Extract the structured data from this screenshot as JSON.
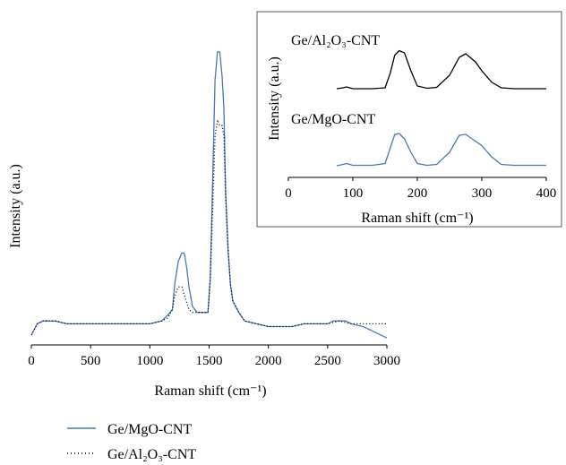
{
  "chart_data": {
    "type": "line",
    "main": {
      "xlabel": "Raman shift (cm⁻¹)",
      "ylabel": "Intensity (a.u.)",
      "xlim": [
        0,
        3000
      ],
      "x_ticks": [
        0,
        500,
        1000,
        1500,
        2000,
        2500,
        3000
      ],
      "series": [
        {
          "name": "Ge/MgO-CNT",
          "color": "#4a78b5",
          "style": "solid",
          "points": [
            [
              0,
              0.0
            ],
            [
              50,
              0.04
            ],
            [
              100,
              0.05
            ],
            [
              200,
              0.05
            ],
            [
              300,
              0.04
            ],
            [
              400,
              0.04
            ],
            [
              500,
              0.04
            ],
            [
              600,
              0.04
            ],
            [
              700,
              0.04
            ],
            [
              800,
              0.04
            ],
            [
              900,
              0.04
            ],
            [
              1000,
              0.04
            ],
            [
              1100,
              0.05
            ],
            [
              1150,
              0.07
            ],
            [
              1190,
              0.09
            ],
            [
              1210,
              0.18
            ],
            [
              1240,
              0.26
            ],
            [
              1270,
              0.29
            ],
            [
              1290,
              0.29
            ],
            [
              1310,
              0.24
            ],
            [
              1330,
              0.17
            ],
            [
              1360,
              0.1
            ],
            [
              1400,
              0.08
            ],
            [
              1450,
              0.08
            ],
            [
              1490,
              0.08
            ],
            [
              1510,
              0.2
            ],
            [
              1530,
              0.55
            ],
            [
              1550,
              0.9
            ],
            [
              1570,
              1.0
            ],
            [
              1590,
              1.0
            ],
            [
              1610,
              0.91
            ],
            [
              1625,
              0.8
            ],
            [
              1640,
              0.5
            ],
            [
              1660,
              0.3
            ],
            [
              1680,
              0.18
            ],
            [
              1700,
              0.12
            ],
            [
              1750,
              0.08
            ],
            [
              1800,
              0.05
            ],
            [
              1900,
              0.04
            ],
            [
              2000,
              0.03
            ],
            [
              2100,
              0.03
            ],
            [
              2200,
              0.03
            ],
            [
              2300,
              0.04
            ],
            [
              2400,
              0.04
            ],
            [
              2500,
              0.04
            ],
            [
              2550,
              0.05
            ],
            [
              2600,
              0.05
            ],
            [
              2650,
              0.05
            ],
            [
              2700,
              0.04
            ],
            [
              2800,
              0.03
            ],
            [
              2900,
              0.01
            ],
            [
              3000,
              -0.01
            ]
          ]
        },
        {
          "name": "Ge/Al₂O₃-CNT",
          "color": "#000000",
          "style": "dotted",
          "points": [
            [
              0,
              0.0
            ],
            [
              50,
              0.04
            ],
            [
              100,
              0.05
            ],
            [
              200,
              0.05
            ],
            [
              300,
              0.04
            ],
            [
              400,
              0.04
            ],
            [
              500,
              0.04
            ],
            [
              600,
              0.04
            ],
            [
              700,
              0.04
            ],
            [
              800,
              0.04
            ],
            [
              900,
              0.04
            ],
            [
              1000,
              0.04
            ],
            [
              1100,
              0.05
            ],
            [
              1150,
              0.06
            ],
            [
              1190,
              0.09
            ],
            [
              1210,
              0.14
            ],
            [
              1240,
              0.17
            ],
            [
              1270,
              0.17
            ],
            [
              1300,
              0.13
            ],
            [
              1330,
              0.09
            ],
            [
              1360,
              0.08
            ],
            [
              1400,
              0.08
            ],
            [
              1450,
              0.08
            ],
            [
              1490,
              0.08
            ],
            [
              1510,
              0.2
            ],
            [
              1530,
              0.45
            ],
            [
              1550,
              0.7
            ],
            [
              1570,
              0.76
            ],
            [
              1590,
              0.74
            ],
            [
              1610,
              0.74
            ],
            [
              1625,
              0.7
            ],
            [
              1640,
              0.48
            ],
            [
              1660,
              0.3
            ],
            [
              1680,
              0.18
            ],
            [
              1700,
              0.12
            ],
            [
              1750,
              0.08
            ],
            [
              1800,
              0.05
            ],
            [
              1900,
              0.04
            ],
            [
              2000,
              0.03
            ],
            [
              2100,
              0.03
            ],
            [
              2200,
              0.03
            ],
            [
              2300,
              0.04
            ],
            [
              2400,
              0.04
            ],
            [
              2500,
              0.04
            ],
            [
              2600,
              0.05
            ],
            [
              2700,
              0.04
            ],
            [
              2800,
              0.04
            ],
            [
              2900,
              0.04
            ],
            [
              3000,
              0.04
            ]
          ]
        }
      ]
    },
    "inset": {
      "xlabel": "Raman shift (cm⁻¹)",
      "ylabel": "Intensity (a.u.)",
      "xlim": [
        0,
        400
      ],
      "x_ticks": [
        0,
        100,
        200,
        300,
        400
      ],
      "labels": [
        "Ge/Al₂O₃-CNT",
        "Ge/MgO-CNT"
      ],
      "series": [
        {
          "name": "Ge/Al₂O₃-CNT",
          "color": "#000000",
          "style": "solid",
          "points": [
            [
              75,
              0.0
            ],
            [
              85,
              0.02
            ],
            [
              90,
              0.04
            ],
            [
              95,
              0.02
            ],
            [
              100,
              0.0
            ],
            [
              130,
              0.0
            ],
            [
              150,
              0.02
            ],
            [
              158,
              0.35
            ],
            [
              165,
              0.75
            ],
            [
              172,
              0.85
            ],
            [
              180,
              0.8
            ],
            [
              190,
              0.4
            ],
            [
              200,
              0.06
            ],
            [
              215,
              0.01
            ],
            [
              230,
              0.03
            ],
            [
              250,
              0.3
            ],
            [
              265,
              0.7
            ],
            [
              275,
              0.78
            ],
            [
              290,
              0.6
            ],
            [
              300,
              0.4
            ],
            [
              315,
              0.15
            ],
            [
              330,
              0.02
            ],
            [
              350,
              0.0
            ],
            [
              400,
              0.0
            ]
          ]
        },
        {
          "name": "Ge/MgO-CNT",
          "color": "#4a78b5",
          "style": "solid",
          "points": [
            [
              75,
              0.0
            ],
            [
              85,
              0.03
            ],
            [
              90,
              0.05
            ],
            [
              95,
              0.03
            ],
            [
              100,
              0.01
            ],
            [
              130,
              0.01
            ],
            [
              150,
              0.05
            ],
            [
              158,
              0.4
            ],
            [
              165,
              0.7
            ],
            [
              172,
              0.72
            ],
            [
              180,
              0.6
            ],
            [
              190,
              0.3
            ],
            [
              200,
              0.05
            ],
            [
              215,
              0.01
            ],
            [
              230,
              0.03
            ],
            [
              250,
              0.3
            ],
            [
              265,
              0.68
            ],
            [
              275,
              0.7
            ],
            [
              290,
              0.55
            ],
            [
              300,
              0.45
            ],
            [
              315,
              0.2
            ],
            [
              330,
              0.03
            ],
            [
              350,
              0.01
            ],
            [
              400,
              0.01
            ]
          ]
        }
      ]
    },
    "legend": {
      "placement": "bottom-left",
      "items": [
        {
          "label": "Ge/MgO-CNT",
          "color": "#4a78b5",
          "style": "solid"
        },
        {
          "label": "Ge/Al₂O₃-CNT",
          "color": "#000000",
          "style": "dotted"
        }
      ]
    }
  }
}
